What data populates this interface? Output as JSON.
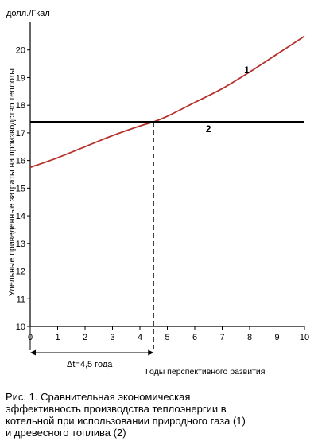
{
  "chart_data": {
    "type": "line",
    "unit_label": "долл./Гкал",
    "ylabel": "Удельные приведенные затраты на производство теплоты",
    "xlabel": "Годы перспективного развития",
    "xlim": [
      0,
      10
    ],
    "ylim": [
      10,
      21
    ],
    "x_ticks": [
      "0",
      "1",
      "2",
      "3",
      "4",
      "5",
      "6",
      "7",
      "8",
      "9",
      "10"
    ],
    "y_ticks": [
      "10",
      "11",
      "12",
      "13",
      "14",
      "15",
      "16",
      "17",
      "18",
      "19",
      "20"
    ],
    "grid": false,
    "series": [
      {
        "name": "1",
        "color": "#b5322c",
        "x": [
          0,
          1,
          2,
          3,
          4,
          4.5,
          5,
          6,
          7,
          8,
          9,
          10
        ],
        "y": [
          15.75,
          16.1,
          16.5,
          16.9,
          17.25,
          17.4,
          17.6,
          18.1,
          18.6,
          19.2,
          19.85,
          20.5
        ]
      },
      {
        "name": "2",
        "color": "#000000",
        "x": [
          0,
          10
        ],
        "y": [
          17.4,
          17.4
        ]
      }
    ],
    "annotations": {
      "intersection_x": 4.5,
      "delta_label": "Δt=4,5 года"
    }
  },
  "caption": {
    "lines": [
      "Рис. 1. Сравнительная экономическая",
      "эффективность производства теплоэнергии в",
      "котельной при использовании природного газа (1)",
      "и древесного топлива (2)"
    ]
  }
}
